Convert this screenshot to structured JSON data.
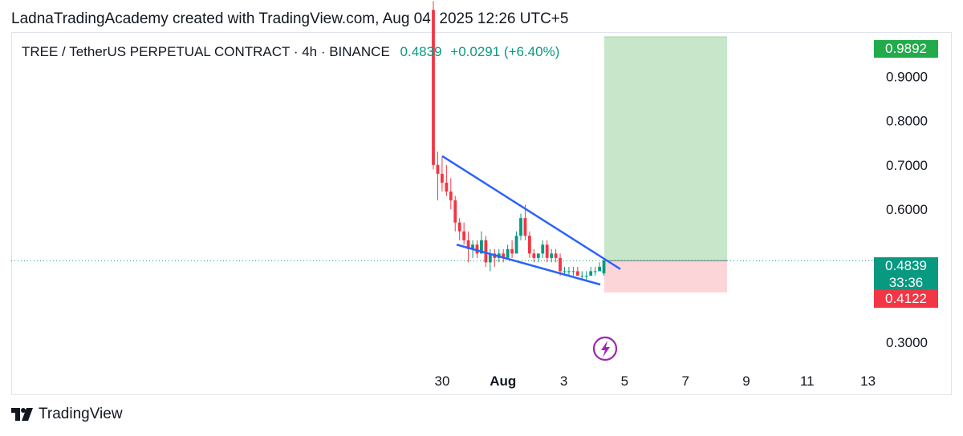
{
  "header": {
    "credit": "LadnaTradingAcademy created with TradingView.com, Aug 04, 2025 12:26 UTC+5"
  },
  "legend": {
    "symbol": "TREE / TetherUS PERPETUAL CONTRACT · 4h · BINANCE",
    "last": "0.4839",
    "change": "+0.0291 (+6.40%)"
  },
  "badges": {
    "target": "0.9892",
    "current": "0.4839",
    "countdown": "33:36",
    "stop": "0.4122"
  },
  "footer": {
    "brand": "TradingView"
  },
  "colors": {
    "up": "#089981",
    "down": "#f23645",
    "wedge": "#2962ff",
    "profit_zone": "#c8e6c9",
    "loss_zone": "#fcd5d9",
    "target_badge": "#22ab4b"
  },
  "chart_data": {
    "type": "candlestick",
    "title": "TREE / TetherUS PERPETUAL CONTRACT · 4h · BINANCE",
    "y_ticks": [
      "0.9000",
      "0.8000",
      "0.7000",
      "0.6000",
      "0.3000"
    ],
    "ylim": [
      0.24,
      1.0
    ],
    "x_ticks": [
      {
        "label": "30",
        "bold": false
      },
      {
        "label": "Aug",
        "bold": true
      },
      {
        "label": "3",
        "bold": false
      },
      {
        "label": "5",
        "bold": false
      },
      {
        "label": "7",
        "bold": false
      },
      {
        "label": "9",
        "bold": false
      },
      {
        "label": "11",
        "bold": false
      },
      {
        "label": "13",
        "bold": false
      }
    ],
    "candles": [
      [
        1.05,
        1.07,
        0.69,
        0.7
      ],
      [
        0.7,
        0.73,
        0.62,
        0.68
      ],
      [
        0.68,
        0.72,
        0.64,
        0.66
      ],
      [
        0.66,
        0.7,
        0.63,
        0.64
      ],
      [
        0.64,
        0.67,
        0.6,
        0.62
      ],
      [
        0.62,
        0.63,
        0.55,
        0.57
      ],
      [
        0.57,
        0.58,
        0.53,
        0.55
      ],
      [
        0.55,
        0.57,
        0.52,
        0.53
      ],
      [
        0.53,
        0.55,
        0.48,
        0.51
      ],
      [
        0.51,
        0.53,
        0.49,
        0.52
      ],
      [
        0.52,
        0.53,
        0.49,
        0.5
      ],
      [
        0.5,
        0.55,
        0.5,
        0.53
      ],
      [
        0.53,
        0.54,
        0.47,
        0.48
      ],
      [
        0.48,
        0.51,
        0.46,
        0.5
      ],
      [
        0.5,
        0.51,
        0.47,
        0.49
      ],
      [
        0.49,
        0.51,
        0.48,
        0.5
      ],
      [
        0.5,
        0.51,
        0.48,
        0.49
      ],
      [
        0.49,
        0.52,
        0.49,
        0.51
      ],
      [
        0.51,
        0.53,
        0.49,
        0.5
      ],
      [
        0.5,
        0.55,
        0.5,
        0.54
      ],
      [
        0.54,
        0.59,
        0.53,
        0.58
      ],
      [
        0.58,
        0.61,
        0.53,
        0.54
      ],
      [
        0.54,
        0.55,
        0.49,
        0.5
      ],
      [
        0.5,
        0.51,
        0.48,
        0.49
      ],
      [
        0.49,
        0.5,
        0.48,
        0.5
      ],
      [
        0.5,
        0.53,
        0.49,
        0.52
      ],
      [
        0.52,
        0.53,
        0.48,
        0.49
      ],
      [
        0.49,
        0.51,
        0.48,
        0.5
      ],
      [
        0.5,
        0.51,
        0.48,
        0.49
      ],
      [
        0.49,
        0.5,
        0.45,
        0.46
      ],
      [
        0.46,
        0.47,
        0.45,
        0.46
      ],
      [
        0.46,
        0.47,
        0.45,
        0.46
      ],
      [
        0.46,
        0.47,
        0.45,
        0.46
      ],
      [
        0.46,
        0.47,
        0.45,
        0.45
      ],
      [
        0.45,
        0.46,
        0.44,
        0.45
      ],
      [
        0.45,
        0.46,
        0.44,
        0.45
      ],
      [
        0.45,
        0.47,
        0.45,
        0.46
      ],
      [
        0.46,
        0.47,
        0.45,
        0.46
      ],
      [
        0.46,
        0.48,
        0.46,
        0.47
      ],
      [
        0.455,
        0.49,
        0.45,
        0.4839
      ]
    ],
    "candle_format": [
      "open",
      "high",
      "low",
      "close"
    ],
    "wedge_upper": [
      [
        0.72,
        0.0
      ],
      [
        0.465,
        1.0
      ]
    ],
    "wedge_lower": [
      [
        0.52,
        0.0
      ],
      [
        0.43,
        1.0
      ]
    ],
    "current_price": 0.4839,
    "long_position": {
      "entry": 0.4839,
      "target": 0.9892,
      "stop": 0.4122
    }
  }
}
